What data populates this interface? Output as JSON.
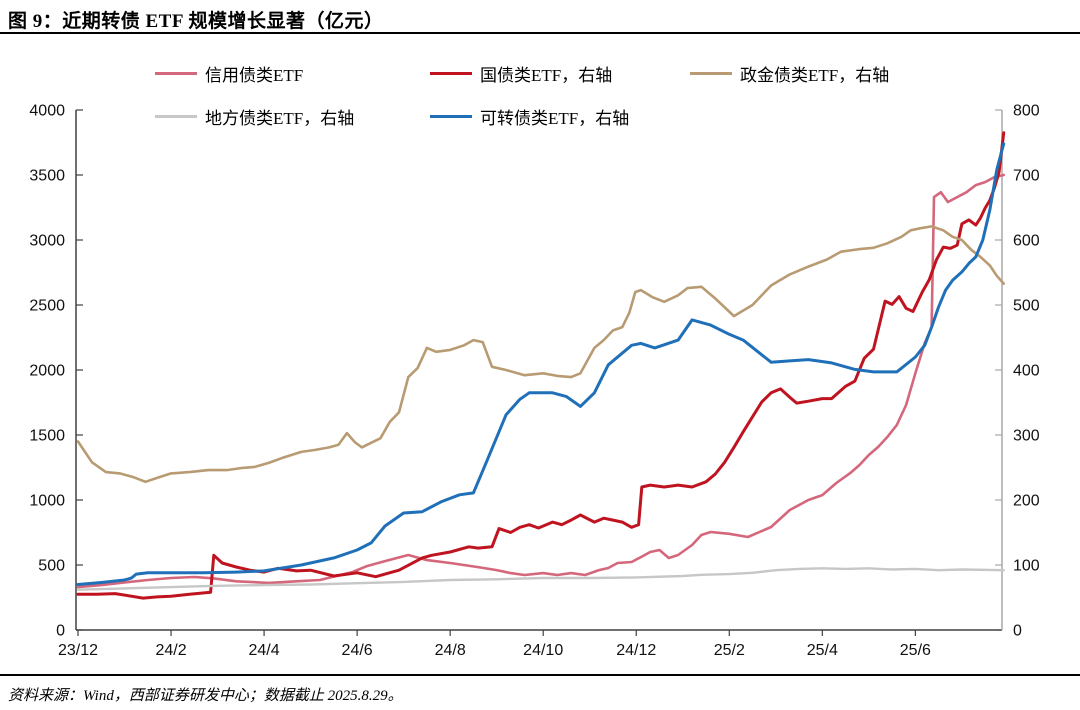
{
  "title": "图 9：近期转债 ETF 规模增长显著（亿元）",
  "footer": "资料来源：Wind，西部证券研发中心；数据截止 2025.8.29。",
  "colors": {
    "credit_pink": "#d4677b",
    "treasury_red": "#bf1420",
    "policy_tan": "#b89b72",
    "local_gray": "#c7c7c7",
    "convertible_blue": "#1f70b8",
    "axis_dark": "#404040",
    "axis_light": "#a8a8a8"
  },
  "chart_data": {
    "type": "line",
    "title": "近期转债 ETF 规模增长显著（亿元）",
    "x_unit_note": "x = months since 2023-12",
    "x_ticks": [
      "23/12",
      "24/2",
      "24/4",
      "24/6",
      "24/8",
      "24/10",
      "24/12",
      "25/2",
      "25/4",
      "25/6"
    ],
    "left_axis": {
      "min": 0,
      "max": 4000,
      "ticks": [
        4000,
        3500,
        3000,
        2500,
        2000,
        1500,
        1000,
        500,
        0
      ]
    },
    "right_axis": {
      "min": 0,
      "max": 800,
      "ticks": [
        800,
        700,
        600,
        500,
        400,
        300,
        200,
        100,
        0
      ]
    },
    "grid": false,
    "legend_position": "top",
    "series": [
      {
        "name": "信用债类ETF",
        "axis": "left",
        "color": "#d4677b",
        "width": 2.6,
        "points": [
          [
            0,
            330
          ],
          [
            0.5,
            345
          ],
          [
            1,
            365
          ],
          [
            1.5,
            385
          ],
          [
            2,
            400
          ],
          [
            2.5,
            408
          ],
          [
            2.9,
            398
          ],
          [
            3.4,
            375
          ],
          [
            4.1,
            362
          ],
          [
            4.6,
            372
          ],
          [
            5.2,
            385
          ],
          [
            5.9,
            446
          ],
          [
            6.2,
            490
          ],
          [
            6.6,
            530
          ],
          [
            7.1,
            577
          ],
          [
            7.5,
            538
          ],
          [
            8,
            515
          ],
          [
            8.6,
            484
          ],
          [
            9,
            461
          ],
          [
            9.3,
            438
          ],
          [
            9.6,
            423
          ],
          [
            10,
            438
          ],
          [
            10.3,
            423
          ],
          [
            10.6,
            438
          ],
          [
            10.9,
            423
          ],
          [
            11.2,
            461
          ],
          [
            11.4,
            477
          ],
          [
            11.6,
            515
          ],
          [
            11.9,
            523
          ],
          [
            12.1,
            561
          ],
          [
            12.3,
            600
          ],
          [
            12.5,
            615
          ],
          [
            12.7,
            554
          ],
          [
            12.9,
            577
          ],
          [
            13.2,
            654
          ],
          [
            13.4,
            731
          ],
          [
            13.6,
            754
          ],
          [
            14,
            740
          ],
          [
            14.4,
            715
          ],
          [
            14.9,
            792
          ],
          [
            15.3,
            923
          ],
          [
            15.7,
            1000
          ],
          [
            16,
            1038
          ],
          [
            16.3,
            1131
          ],
          [
            16.6,
            1207
          ],
          [
            16.8,
            1269
          ],
          [
            17,
            1346
          ],
          [
            17.2,
            1408
          ],
          [
            17.4,
            1485
          ],
          [
            17.6,
            1577
          ],
          [
            17.8,
            1731
          ],
          [
            18,
            1976
          ],
          [
            18.2,
            2207
          ],
          [
            18.35,
            2330
          ],
          [
            18.4,
            3330
          ],
          [
            18.55,
            3368
          ],
          [
            18.7,
            3292
          ],
          [
            18.9,
            3330
          ],
          [
            19.1,
            3368
          ],
          [
            19.3,
            3422
          ],
          [
            19.5,
            3445
          ],
          [
            19.7,
            3484
          ],
          [
            19.9,
            3500
          ]
        ]
      },
      {
        "name": "国债类ETF，右轴",
        "axis": "right",
        "color": "#bf1420",
        "width": 3,
        "points": [
          [
            0,
            55
          ],
          [
            0.4,
            55
          ],
          [
            0.8,
            56
          ],
          [
            1.4,
            49
          ],
          [
            1.7,
            51
          ],
          [
            2,
            52
          ],
          [
            2.4,
            55
          ],
          [
            2.85,
            58
          ],
          [
            2.92,
            115
          ],
          [
            3.1,
            103
          ],
          [
            3.4,
            97
          ],
          [
            3.7,
            92
          ],
          [
            4,
            89
          ],
          [
            4.3,
            95
          ],
          [
            4.7,
            91
          ],
          [
            5,
            92
          ],
          [
            5.5,
            83
          ],
          [
            6,
            88
          ],
          [
            6.4,
            82
          ],
          [
            6.9,
            92
          ],
          [
            7.4,
            111
          ],
          [
            7.6,
            115
          ],
          [
            8,
            120
          ],
          [
            8.4,
            128
          ],
          [
            8.6,
            126
          ],
          [
            8.9,
            128
          ],
          [
            9.05,
            156
          ],
          [
            9.3,
            150
          ],
          [
            9.5,
            158
          ],
          [
            9.7,
            162
          ],
          [
            9.9,
            157
          ],
          [
            10.2,
            166
          ],
          [
            10.4,
            162
          ],
          [
            10.6,
            169
          ],
          [
            10.8,
            177
          ],
          [
            11.1,
            166
          ],
          [
            11.3,
            172
          ],
          [
            11.5,
            169
          ],
          [
            11.7,
            166
          ],
          [
            11.9,
            158
          ],
          [
            12.05,
            162
          ],
          [
            12.12,
            220
          ],
          [
            12.3,
            223
          ],
          [
            12.6,
            220
          ],
          [
            12.9,
            223
          ],
          [
            13.2,
            220
          ],
          [
            13.5,
            228
          ],
          [
            13.7,
            240
          ],
          [
            13.9,
            258
          ],
          [
            14.1,
            281
          ],
          [
            14.3,
            305
          ],
          [
            14.5,
            328
          ],
          [
            14.7,
            351
          ],
          [
            14.9,
            365
          ],
          [
            15.1,
            371
          ],
          [
            15.3,
            358
          ],
          [
            15.45,
            349
          ],
          [
            15.7,
            352
          ],
          [
            16,
            356
          ],
          [
            16.2,
            356
          ],
          [
            16.5,
            375
          ],
          [
            16.7,
            383
          ],
          [
            16.9,
            418
          ],
          [
            17.1,
            432
          ],
          [
            17.35,
            506
          ],
          [
            17.5,
            501
          ],
          [
            17.65,
            513
          ],
          [
            17.8,
            495
          ],
          [
            17.95,
            490
          ],
          [
            18.15,
            520
          ],
          [
            18.3,
            539
          ],
          [
            18.45,
            569
          ],
          [
            18.6,
            589
          ],
          [
            18.75,
            587
          ],
          [
            18.9,
            592
          ],
          [
            19,
            625
          ],
          [
            19.15,
            631
          ],
          [
            19.3,
            623
          ],
          [
            19.4,
            634
          ],
          [
            19.5,
            649
          ],
          [
            19.6,
            661
          ],
          [
            19.7,
            680
          ],
          [
            19.8,
            705
          ],
          [
            19.9,
            765
          ]
        ]
      },
      {
        "name": "政金债类ETF，右轴",
        "axis": "right",
        "color": "#b89b72",
        "width": 2.6,
        "points": [
          [
            0,
            290
          ],
          [
            0.3,
            258
          ],
          [
            0.6,
            243
          ],
          [
            0.9,
            241
          ],
          [
            1.2,
            235
          ],
          [
            1.45,
            228
          ],
          [
            1.7,
            234
          ],
          [
            2,
            241
          ],
          [
            2.4,
            243
          ],
          [
            2.8,
            246
          ],
          [
            3.2,
            246
          ],
          [
            3.5,
            249
          ],
          [
            3.8,
            251
          ],
          [
            4.1,
            257
          ],
          [
            4.4,
            265
          ],
          [
            4.8,
            274
          ],
          [
            5.1,
            277
          ],
          [
            5.4,
            281
          ],
          [
            5.6,
            285
          ],
          [
            5.78,
            303
          ],
          [
            5.95,
            289
          ],
          [
            6.1,
            281
          ],
          [
            6.3,
            288
          ],
          [
            6.5,
            295
          ],
          [
            6.7,
            320
          ],
          [
            6.9,
            335
          ],
          [
            7.1,
            389
          ],
          [
            7.3,
            403
          ],
          [
            7.5,
            434
          ],
          [
            7.7,
            428
          ],
          [
            8,
            431
          ],
          [
            8.3,
            438
          ],
          [
            8.5,
            446
          ],
          [
            8.7,
            443
          ],
          [
            8.9,
            405
          ],
          [
            9.2,
            400
          ],
          [
            9.6,
            392
          ],
          [
            10,
            395
          ],
          [
            10.3,
            391
          ],
          [
            10.6,
            389
          ],
          [
            10.8,
            395
          ],
          [
            11.1,
            434
          ],
          [
            11.3,
            446
          ],
          [
            11.5,
            461
          ],
          [
            11.7,
            466
          ],
          [
            11.85,
            488
          ],
          [
            11.98,
            520
          ],
          [
            12.1,
            523
          ],
          [
            12.35,
            512
          ],
          [
            12.6,
            505
          ],
          [
            12.9,
            515
          ],
          [
            13.1,
            526
          ],
          [
            13.4,
            528
          ],
          [
            13.7,
            510
          ],
          [
            14.1,
            483
          ],
          [
            14.5,
            500
          ],
          [
            14.9,
            530
          ],
          [
            15.3,
            547
          ],
          [
            15.7,
            559
          ],
          [
            16.1,
            570
          ],
          [
            16.4,
            582
          ],
          [
            16.8,
            586
          ],
          [
            17.1,
            588
          ],
          [
            17.4,
            595
          ],
          [
            17.7,
            605
          ],
          [
            17.9,
            615
          ],
          [
            18.1,
            618
          ],
          [
            18.35,
            621
          ],
          [
            18.6,
            615
          ],
          [
            18.8,
            605
          ],
          [
            19,
            600
          ],
          [
            19.2,
            585
          ],
          [
            19.4,
            574
          ],
          [
            19.6,
            561
          ],
          [
            19.75,
            545
          ],
          [
            19.9,
            533
          ]
        ]
      },
      {
        "name": "地方债类ETF，右轴",
        "axis": "right",
        "color": "#c7c7c7",
        "width": 2.4,
        "points": [
          [
            0,
            62
          ],
          [
            1,
            64
          ],
          [
            2,
            66
          ],
          [
            3,
            68
          ],
          [
            4,
            69
          ],
          [
            5,
            70
          ],
          [
            6,
            72
          ],
          [
            7,
            74
          ],
          [
            8,
            77
          ],
          [
            9,
            78
          ],
          [
            10,
            80
          ],
          [
            11,
            80
          ],
          [
            12,
            81
          ],
          [
            13,
            83
          ],
          [
            13.4,
            85
          ],
          [
            14,
            86
          ],
          [
            14.5,
            88
          ],
          [
            15,
            92
          ],
          [
            15.5,
            94
          ],
          [
            16,
            95
          ],
          [
            16.5,
            94
          ],
          [
            17,
            95
          ],
          [
            17.5,
            93
          ],
          [
            18,
            94
          ],
          [
            18.5,
            92
          ],
          [
            19,
            93
          ],
          [
            19.9,
            92
          ]
        ]
      },
      {
        "name": "可转债类ETF，右轴",
        "axis": "right",
        "color": "#1f70b8",
        "width": 3,
        "points": [
          [
            0,
            70
          ],
          [
            0.5,
            73
          ],
          [
            1,
            77
          ],
          [
            1.15,
            80
          ],
          [
            1.25,
            86
          ],
          [
            1.5,
            88
          ],
          [
            2,
            88
          ],
          [
            2.7,
            88
          ],
          [
            3.4,
            89
          ],
          [
            4,
            91
          ],
          [
            4.8,
            100
          ],
          [
            5.5,
            111
          ],
          [
            6,
            123
          ],
          [
            6.3,
            134
          ],
          [
            6.6,
            160
          ],
          [
            7,
            180
          ],
          [
            7.4,
            182
          ],
          [
            7.8,
            197
          ],
          [
            8.2,
            208
          ],
          [
            8.5,
            211
          ],
          [
            8.8,
            262
          ],
          [
            9.2,
            331
          ],
          [
            9.5,
            355
          ],
          [
            9.7,
            365
          ],
          [
            10.2,
            365
          ],
          [
            10.5,
            359
          ],
          [
            10.8,
            344
          ],
          [
            11.1,
            365
          ],
          [
            11.4,
            408
          ],
          [
            11.9,
            438
          ],
          [
            12.1,
            441
          ],
          [
            12.4,
            434
          ],
          [
            12.9,
            446
          ],
          [
            13.2,
            477
          ],
          [
            13.6,
            469
          ],
          [
            14,
            455
          ],
          [
            14.3,
            446
          ],
          [
            14.9,
            412
          ],
          [
            15.3,
            414
          ],
          [
            15.7,
            416
          ],
          [
            16.2,
            411
          ],
          [
            16.7,
            401
          ],
          [
            17.1,
            397
          ],
          [
            17.6,
            397
          ],
          [
            18,
            420
          ],
          [
            18.2,
            438
          ],
          [
            18.35,
            466
          ],
          [
            18.5,
            497
          ],
          [
            18.65,
            523
          ],
          [
            18.8,
            538
          ],
          [
            19,
            551
          ],
          [
            19.15,
            564
          ],
          [
            19.3,
            574
          ],
          [
            19.45,
            600
          ],
          [
            19.6,
            646
          ],
          [
            19.75,
            708
          ],
          [
            19.85,
            735
          ],
          [
            19.9,
            748
          ]
        ]
      }
    ]
  }
}
